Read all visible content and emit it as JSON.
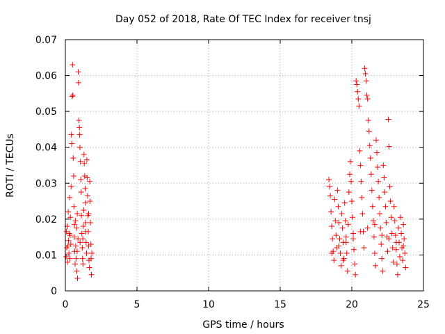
{
  "chart_data": {
    "type": "scatter",
    "title": "Day 052 of 2018, Rate Of TEC Index for receiver tnsj",
    "xlabel": "GPS time / hours",
    "ylabel": "ROTI / TECUs",
    "xlim": [
      0,
      25
    ],
    "ylim": [
      0,
      0.07
    ],
    "xticks": [
      0,
      5,
      10,
      15,
      20,
      25
    ],
    "xtick_labels": [
      "0",
      "5",
      "10",
      "15",
      "20",
      "25"
    ],
    "yticks": [
      0,
      0.01,
      0.02,
      0.03,
      0.04,
      0.05,
      0.06,
      0.07
    ],
    "ytick_labels": [
      "0",
      "0.01",
      "0.02",
      "0.03",
      "0.04",
      "0.05",
      "0.06",
      "0.07"
    ],
    "grid": true,
    "marker": "+",
    "color": "#ff0000",
    "series": [
      {
        "name": "ROTI",
        "points": [
          [
            0.05,
            0.0095
          ],
          [
            0.1,
            0.012
          ],
          [
            0.12,
            0.018
          ],
          [
            0.15,
            0.008
          ],
          [
            0.2,
            0.022
          ],
          [
            0.22,
            0.014
          ],
          [
            0.25,
            0.0105
          ],
          [
            0.28,
            0.016
          ],
          [
            0.3,
            0.026
          ],
          [
            0.32,
            0.009
          ],
          [
            0.35,
            0.0205
          ],
          [
            0.38,
            0.013
          ],
          [
            0.4,
            0.029
          ],
          [
            0.42,
            0.0435
          ],
          [
            0.45,
            0.041
          ],
          [
            0.48,
            0.0542
          ],
          [
            0.5,
            0.063
          ],
          [
            0.52,
            0.0545
          ],
          [
            0.55,
            0.037
          ],
          [
            0.58,
            0.032
          ],
          [
            0.6,
            0.0235
          ],
          [
            0.62,
            0.015
          ],
          [
            0.65,
            0.011
          ],
          [
            0.68,
            0.0075
          ],
          [
            0.7,
            0.0195
          ],
          [
            0.72,
            0.0125
          ],
          [
            0.75,
            0.009
          ],
          [
            0.78,
            0.0175
          ],
          [
            0.8,
            0.0055
          ],
          [
            0.82,
            0.011
          ],
          [
            0.85,
            0.0035
          ],
          [
            0.88,
            0.0145
          ],
          [
            0.9,
            0.061
          ],
          [
            0.92,
            0.058
          ],
          [
            0.95,
            0.0475
          ],
          [
            0.98,
            0.0455
          ],
          [
            1.0,
            0.0435
          ],
          [
            1.02,
            0.04
          ],
          [
            1.05,
            0.036
          ],
          [
            1.08,
            0.031
          ],
          [
            1.1,
            0.0275
          ],
          [
            1.12,
            0.021
          ],
          [
            1.15,
            0.016
          ],
          [
            1.18,
            0.012
          ],
          [
            1.2,
            0.009
          ],
          [
            1.22,
            0.0145
          ],
          [
            1.25,
            0.018
          ],
          [
            1.28,
            0.0225
          ],
          [
            1.3,
            0.038
          ],
          [
            1.32,
            0.0355
          ],
          [
            1.35,
            0.032
          ],
          [
            1.38,
            0.0285
          ],
          [
            1.4,
            0.0245
          ],
          [
            1.42,
            0.019
          ],
          [
            1.45,
            0.0135
          ],
          [
            1.48,
            0.0105
          ],
          [
            1.5,
            0.0365
          ],
          [
            1.52,
            0.0315
          ],
          [
            1.55,
            0.0265
          ],
          [
            1.58,
            0.021
          ],
          [
            1.6,
            0.0165
          ],
          [
            1.62,
            0.0125
          ],
          [
            1.65,
            0.0085
          ],
          [
            1.68,
            0.0065
          ],
          [
            1.7,
            0.0305
          ],
          [
            1.72,
            0.025
          ],
          [
            1.75,
            0.019
          ],
          [
            1.78,
            0.013
          ],
          [
            1.8,
            0.009
          ],
          [
            1.82,
            0.0045
          ],
          [
            1.85,
            0.0105
          ],
          [
            0.18,
            0.0125
          ],
          [
            0.33,
            0.0155
          ],
          [
            0.63,
            0.0185
          ],
          [
            0.83,
            0.0215
          ],
          [
            1.03,
            0.0135
          ],
          [
            1.23,
            0.0075
          ],
          [
            1.43,
            0.0165
          ],
          [
            1.63,
            0.0215
          ],
          [
            0.08,
            0.0165
          ],
          [
            18.4,
            0.031
          ],
          [
            18.45,
            0.029
          ],
          [
            18.5,
            0.0265
          ],
          [
            18.55,
            0.022
          ],
          [
            18.6,
            0.018
          ],
          [
            18.65,
            0.0145
          ],
          [
            18.7,
            0.011
          ],
          [
            18.75,
            0.0085
          ],
          [
            18.8,
            0.0255
          ],
          [
            18.85,
            0.0195
          ],
          [
            18.9,
            0.0155
          ],
          [
            18.95,
            0.012
          ],
          [
            19.0,
            0.028
          ],
          [
            19.05,
            0.0235
          ],
          [
            19.1,
            0.019
          ],
          [
            19.15,
            0.0145
          ],
          [
            19.2,
            0.0105
          ],
          [
            19.25,
            0.007
          ],
          [
            19.3,
            0.0215
          ],
          [
            19.35,
            0.0175
          ],
          [
            19.4,
            0.0135
          ],
          [
            19.45,
            0.009
          ],
          [
            19.5,
            0.0245
          ],
          [
            19.55,
            0.0195
          ],
          [
            19.6,
            0.015
          ],
          [
            19.65,
            0.0105
          ],
          [
            19.7,
            0.0055
          ],
          [
            19.75,
            0.0185
          ],
          [
            19.8,
            0.0275
          ],
          [
            19.85,
            0.0325
          ],
          [
            19.9,
            0.036
          ],
          [
            19.95,
            0.0305
          ],
          [
            20.0,
            0.025
          ],
          [
            20.05,
            0.0205
          ],
          [
            20.1,
            0.016
          ],
          [
            20.15,
            0.0115
          ],
          [
            20.2,
            0.0075
          ],
          [
            20.25,
            0.0045
          ],
          [
            20.3,
            0.0585
          ],
          [
            20.35,
            0.0575
          ],
          [
            20.4,
            0.0555
          ],
          [
            20.45,
            0.0535
          ],
          [
            20.5,
            0.0515
          ],
          [
            20.55,
            0.039
          ],
          [
            20.6,
            0.035
          ],
          [
            20.65,
            0.0305
          ],
          [
            20.7,
            0.026
          ],
          [
            20.75,
            0.0215
          ],
          [
            20.8,
            0.0165
          ],
          [
            20.85,
            0.012
          ],
          [
            20.9,
            0.062
          ],
          [
            20.95,
            0.0605
          ],
          [
            21.0,
            0.0585
          ],
          [
            21.05,
            0.0545
          ],
          [
            21.1,
            0.0535
          ],
          [
            21.15,
            0.0475
          ],
          [
            21.2,
            0.0445
          ],
          [
            21.25,
            0.0405
          ],
          [
            21.3,
            0.037
          ],
          [
            21.35,
            0.0325
          ],
          [
            21.4,
            0.028
          ],
          [
            21.45,
            0.0235
          ],
          [
            21.5,
            0.0195
          ],
          [
            21.55,
            0.015
          ],
          [
            21.6,
            0.0105
          ],
          [
            21.65,
            0.007
          ],
          [
            21.7,
            0.042
          ],
          [
            21.75,
            0.0385
          ],
          [
            21.8,
            0.0345
          ],
          [
            21.85,
            0.0305
          ],
          [
            21.9,
            0.026
          ],
          [
            21.95,
            0.0215
          ],
          [
            22.0,
            0.0175
          ],
          [
            22.05,
            0.013
          ],
          [
            22.1,
            0.009
          ],
          [
            22.15,
            0.0055
          ],
          [
            22.2,
            0.035
          ],
          [
            22.25,
            0.0315
          ],
          [
            22.3,
            0.0275
          ],
          [
            22.35,
            0.0235
          ],
          [
            22.4,
            0.019
          ],
          [
            22.45,
            0.015
          ],
          [
            22.5,
            0.011
          ],
          [
            22.55,
            0.0478
          ],
          [
            22.6,
            0.0402
          ],
          [
            22.65,
            0.029
          ],
          [
            22.7,
            0.025
          ],
          [
            22.75,
            0.0205
          ],
          [
            22.8,
            0.016
          ],
          [
            22.85,
            0.012
          ],
          [
            22.9,
            0.008
          ],
          [
            22.95,
            0.0235
          ],
          [
            23.0,
            0.0195
          ],
          [
            23.05,
            0.0155
          ],
          [
            23.1,
            0.0115
          ],
          [
            23.15,
            0.0075
          ],
          [
            23.2,
            0.0045
          ],
          [
            23.25,
            0.0175
          ],
          [
            23.3,
            0.0135
          ],
          [
            23.35,
            0.0095
          ],
          [
            23.4,
            0.0205
          ],
          [
            23.45,
            0.016
          ],
          [
            23.5,
            0.012
          ],
          [
            23.55,
            0.0085
          ],
          [
            23.6,
            0.0185
          ],
          [
            23.65,
            0.0145
          ],
          [
            23.7,
            0.0105
          ],
          [
            23.75,
            0.0065
          ],
          [
            18.6,
            0.0105
          ],
          [
            19.1,
            0.0125
          ],
          [
            19.6,
            0.0135
          ],
          [
            20.1,
            0.0145
          ],
          [
            20.6,
            0.0165
          ],
          [
            21.1,
            0.0175
          ],
          [
            21.6,
            0.0185
          ],
          [
            22.1,
            0.0155
          ],
          [
            22.6,
            0.0145
          ],
          [
            23.1,
            0.0135
          ],
          [
            23.6,
            0.0125
          ],
          [
            19.4,
            0.0085
          ]
        ]
      }
    ]
  }
}
